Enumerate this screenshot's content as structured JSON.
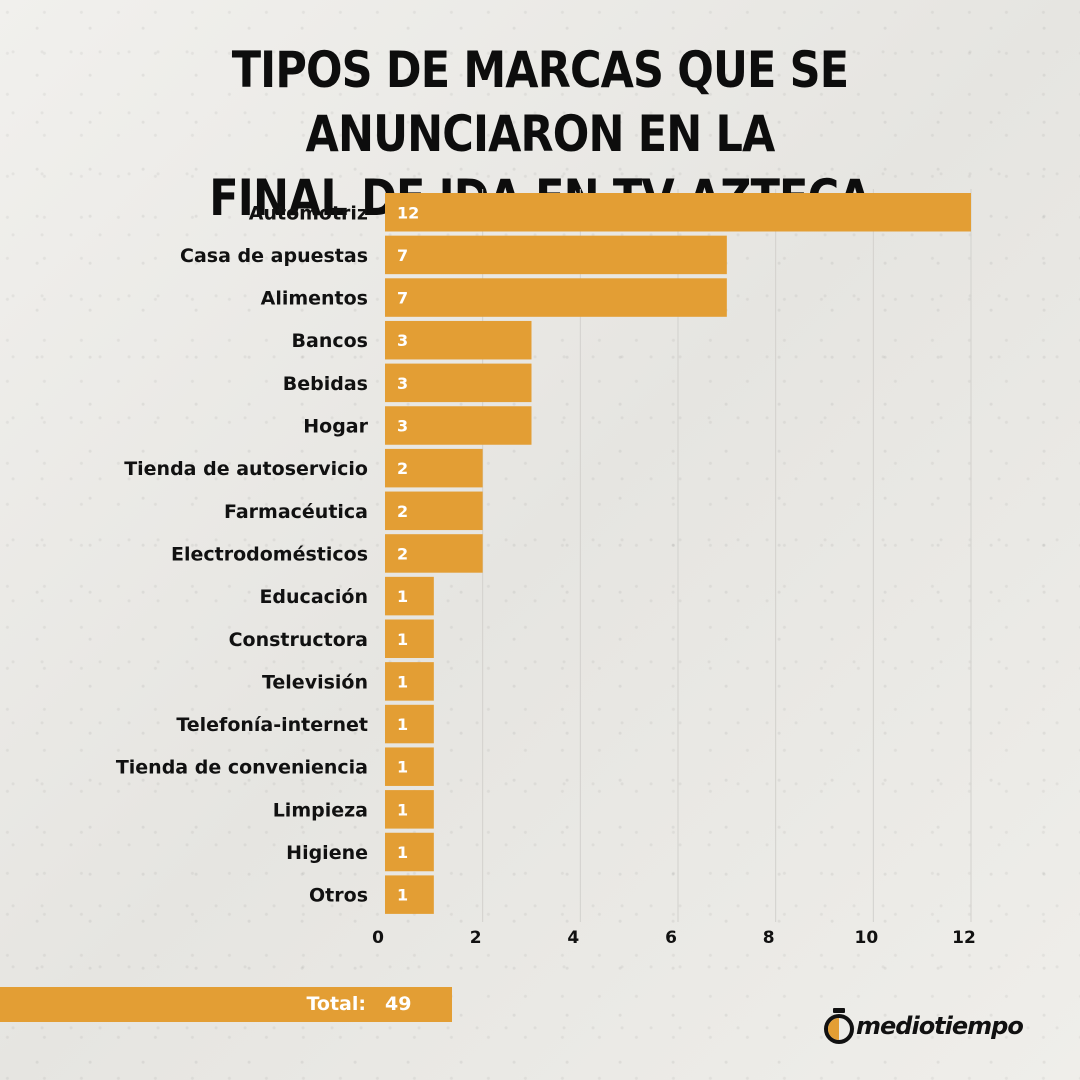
{
  "header": {
    "title_line1": "TIPOS DE MARCAS QUE SE ANUNCIARON EN LA",
    "title_line2": "FINAL DE IDA EN TV AZTECA"
  },
  "chart_data": {
    "type": "bar",
    "orientation": "horizontal",
    "title": "TIPOS DE MARCAS QUE SE ANUNCIARON EN LA FINAL DE IDA EN TV AZTECA",
    "categories": [
      "Automotriz",
      "Casa de apuestas",
      "Alimentos",
      "Bancos",
      "Bebidas",
      "Hogar",
      "Tienda de autoservicio",
      "Farmacéutica",
      "Electrodomésticos",
      "Educación",
      "Constructora",
      "Televisión",
      "Telefonía-internet",
      "Tienda de conveniencia",
      "Limpieza",
      "Higiene",
      "Otros"
    ],
    "values": [
      12,
      7,
      7,
      3,
      3,
      3,
      2,
      2,
      2,
      1,
      1,
      1,
      1,
      1,
      1,
      1,
      1
    ],
    "xticks": [
      0,
      2,
      4,
      6,
      8,
      10,
      12
    ],
    "xlim": [
      0,
      12
    ],
    "grid": "vertical",
    "bar_color": "#e39e34",
    "xlabel": "",
    "ylabel": ""
  },
  "total": {
    "label": "Total:",
    "value": "49"
  },
  "brand": {
    "logo_text": "mediotiempo",
    "accent_color": "#e39e34"
  }
}
